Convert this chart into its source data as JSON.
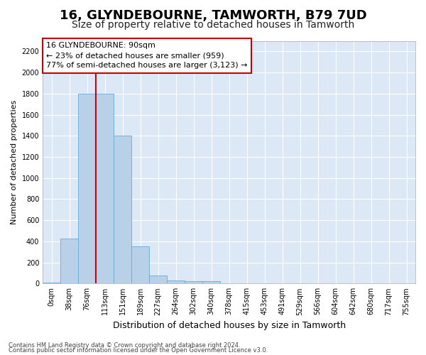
{
  "title1": "16, GLYNDEBOURNE, TAMWORTH, B79 7UD",
  "title2": "Size of property relative to detached houses in Tamworth",
  "xlabel": "Distribution of detached houses by size in Tamworth",
  "ylabel": "Number of detached properties",
  "bin_labels": [
    "0sqm",
    "38sqm",
    "76sqm",
    "113sqm",
    "151sqm",
    "189sqm",
    "227sqm",
    "264sqm",
    "302sqm",
    "340sqm",
    "378sqm",
    "415sqm",
    "453sqm",
    "491sqm",
    "529sqm",
    "566sqm",
    "604sqm",
    "642sqm",
    "680sqm",
    "717sqm",
    "755sqm"
  ],
  "bar_values": [
    10,
    425,
    1800,
    1800,
    1400,
    350,
    75,
    30,
    20,
    20,
    0,
    0,
    0,
    0,
    0,
    0,
    0,
    0,
    0,
    0,
    0
  ],
  "bar_color": "#b8d0e8",
  "bar_edge_color": "#6aaad4",
  "ylim": [
    0,
    2300
  ],
  "yticks": [
    0,
    200,
    400,
    600,
    800,
    1000,
    1200,
    1400,
    1600,
    1800,
    2000,
    2200
  ],
  "red_line_x": 2.5,
  "annotation_text": "16 GLYNDEBOURNE: 90sqm\n← 23% of detached houses are smaller (959)\n77% of semi-detached houses are larger (3,123) →",
  "annotation_box_facecolor": "#ffffff",
  "annotation_box_edgecolor": "#cc0000",
  "footer1": "Contains HM Land Registry data © Crown copyright and database right 2024.",
  "footer2": "Contains public sector information licensed under the Open Government Licence v3.0.",
  "fig_facecolor": "#ffffff",
  "axes_facecolor": "#dce8f5",
  "grid_color": "#ffffff",
  "title1_fontsize": 13,
  "title2_fontsize": 10,
  "ylabel_fontsize": 8,
  "xlabel_fontsize": 9,
  "tick_fontsize": 7,
  "annot_fontsize": 8,
  "footer_fontsize": 6
}
